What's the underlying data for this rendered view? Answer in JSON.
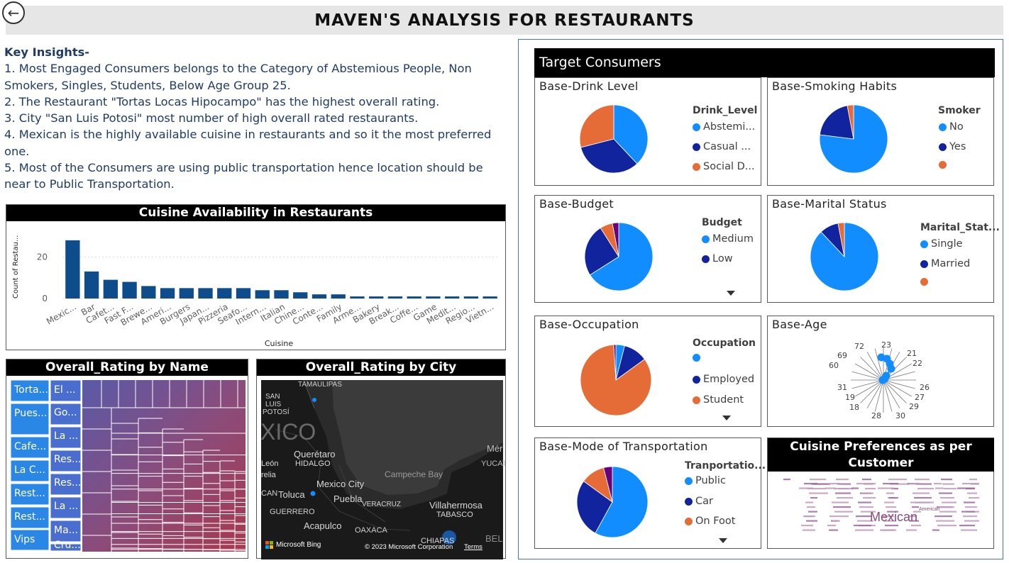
{
  "header": {
    "title": "MAVEN'S ANALYSIS FOR RESTAURANTS"
  },
  "insights": {
    "heading": "Key Insights-",
    "items": [
      "1. Most Engaged Consumers belongs to the Category of Abstemious People, Non Smokers, Singles, Students, Below Age Group 25.",
      "2.  The Restaurant \"Tortas Locas Hipocampo\" has the highest overall rating.",
      "3. City \"San Luis Potosi\" most number of high overall rated restaurants.",
      "4. Mexican is the highly available cuisine in restaurants and so it the most preferred one.",
      "5. Most of the Consumers are using public transportation hence location should be near to Public Transportation."
    ]
  },
  "cuisine_chart": {
    "title": "Cuisine Availability in Restaurants",
    "ylabel": "Count of Restau...",
    "xlabel": "Cuisine",
    "color": "#0f4c8c"
  },
  "chart_data": {
    "type": "bar",
    "title": "Cuisine Availability in Restaurants",
    "xlabel": "Cuisine",
    "ylabel": "Count of Restau...",
    "yticks": [
      0,
      20
    ],
    "ylim": [
      0,
      30
    ],
    "categories": [
      "Mexic...",
      "Bar",
      "Cafet...",
      "Fast F...",
      "Brewe...",
      "Ameri...",
      "Burgers",
      "Japan...",
      "Pizzeria",
      "Seafo...",
      "Intern...",
      "Italian",
      "Chine...",
      "Conte...",
      "Family",
      "Arme...",
      "Bakery",
      "Break...",
      "Coffe...",
      "Game",
      "Medit...",
      "Regio...",
      "Vietn..."
    ],
    "values": [
      28,
      13,
      9,
      8,
      6,
      5,
      5,
      5,
      5,
      5,
      4,
      4,
      3,
      2,
      2,
      1,
      1,
      1,
      1,
      1,
      1,
      1,
      1
    ]
  },
  "treemap": {
    "title": "Overall_Rating by Name",
    "labels": [
      "Torta...",
      "Pues...",
      "Cafe...",
      "La C...",
      "Rest...",
      "Rest...",
      "Vips",
      "El ...",
      "Go...",
      "La ...",
      "Res...",
      "Res...",
      "La ...",
      "Ma...",
      "Cru..."
    ]
  },
  "map": {
    "title": "Overall_Rating by City",
    "labels": [
      "TAMAULIPAS",
      "SAN",
      "LUIS",
      "POTOSÍ",
      "XICO",
      "Querétaro",
      "HIDALGO",
      "León",
      "relia",
      "Mexico City",
      "Toluca",
      "CAN",
      "Puebla",
      "GUERRERO",
      "VERACRUZ",
      "Acapulco",
      "OAXACA",
      "Villahermosa",
      "TABASCO",
      "CHIAPAS",
      "Campeche Bay",
      "Mér",
      "YUCAT",
      "BEL"
    ],
    "bing": "Microsoft Bing",
    "copyright": "© 2023 Microsoft Corporation",
    "terms": "Terms"
  },
  "target": {
    "title": "Target Consumers"
  },
  "cards": {
    "drink": {
      "title": "Base-Drink Level",
      "legend_title": "Drink_Level",
      "items": [
        "Abstemi...",
        "Casual ...",
        "Social D..."
      ]
    },
    "smoking": {
      "title": "Base-Smoking Habits",
      "legend_title": "Smoker",
      "items": [
        "No",
        "Yes",
        ""
      ]
    },
    "budget": {
      "title": "Base-Budget",
      "legend_title": "Budget",
      "items": [
        "Medium",
        "Low"
      ]
    },
    "marital": {
      "title": "Base-Marital Status",
      "legend_title": "Marital_Stat...",
      "items": [
        "Single",
        "Married",
        ""
      ]
    },
    "occupation": {
      "title": "Base-Occupation",
      "legend_title": "Occupation",
      "items": [
        "",
        "Employed",
        "Student"
      ]
    },
    "age": {
      "title": "Base-Age",
      "labels": [
        "72",
        "23",
        "69",
        "21",
        "60",
        "22",
        "31",
        "26",
        "19",
        "27",
        "18",
        "29",
        "28",
        "30"
      ]
    },
    "transport": {
      "title": "Base-Mode of Transportation",
      "legend_title": "Tranportatio...",
      "items": [
        "Public",
        "Car",
        "On Foot"
      ]
    }
  },
  "wordcloud": {
    "title": "Cuisine Preferences as per Customer",
    "main_word": "Mexican",
    "secondary_word": "American"
  },
  "pies": {
    "drink": [
      0.38,
      0.33,
      0.29
    ],
    "smoking": [
      0.77,
      0.2,
      0.03
    ],
    "budget": [
      0.66,
      0.25,
      0.06,
      0.03
    ],
    "marital": [
      0.88,
      0.09,
      0.03
    ],
    "occupation": [
      0.04,
      0.11,
      0.84,
      0.01
    ],
    "transport": [
      0.58,
      0.27,
      0.11,
      0.04
    ]
  },
  "colors": {
    "blue": "#118dff",
    "navy": "#12239e",
    "orange": "#e66c37",
    "purple": "#6b007b",
    "bar": "#0f4c8c"
  }
}
